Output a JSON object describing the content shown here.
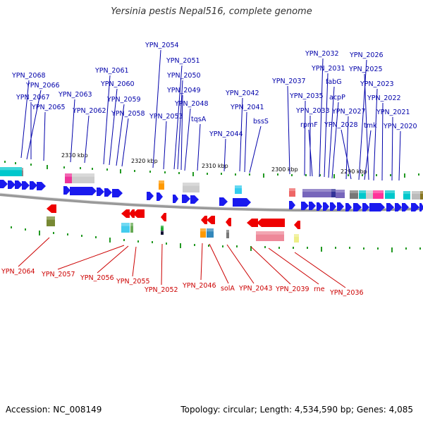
{
  "title": "Yersinia pestis Nepal516, complete genome",
  "footer": {
    "accession": "Accession: NC_008149",
    "summary": "Topology: circular; Length: 4,534,590 bp; Genes: 4,085"
  },
  "colors": {
    "forward_gene": "#1a1aee",
    "reverse_gene": "#ee0000",
    "forward_label": "#0000aa",
    "reverse_label": "#cc0000",
    "backbone": "#999999",
    "tick": "#229922"
  },
  "scale_labels": [
    "2330 kbp",
    "2320 kbp",
    "2310 kbp",
    "2300 kbp",
    "2290 kbp"
  ],
  "forward_labels": [
    "YPN_2068",
    "YPN_2066",
    "YPN_2067",
    "YPN_2065",
    "YPN_2063",
    "YPN_2062",
    "YPN_2061",
    "YPN_2060",
    "YPN_2059",
    "YPN_2058",
    "YPN_2054",
    "YPN_2051",
    "YPN_2050",
    "YPN_2049",
    "YPN_2053",
    "YPN_2048",
    "tqsA",
    "YPN_2044",
    "YPN_2042",
    "YPN_2041",
    "bssS",
    "YPN_2037",
    "YPN_2035",
    "YPN_2033",
    "rpmF",
    "YPN_2032",
    "YPN_2031",
    "fabG",
    "acpP",
    "YPN_2027",
    "YPN_2028",
    "tmk",
    "YPN_2026",
    "YPN_2025",
    "YPN_2023",
    "YPN_2022",
    "YPN_2021",
    "YPN_2020"
  ],
  "reverse_labels": [
    "YPN_2064",
    "YPN_2057",
    "YPN_2056",
    "YPN_2055",
    "YPN_2052",
    "YPN_2046",
    "solA",
    "YPN_2043",
    "YPN_2039",
    "rne",
    "YPN_2036"
  ]
}
